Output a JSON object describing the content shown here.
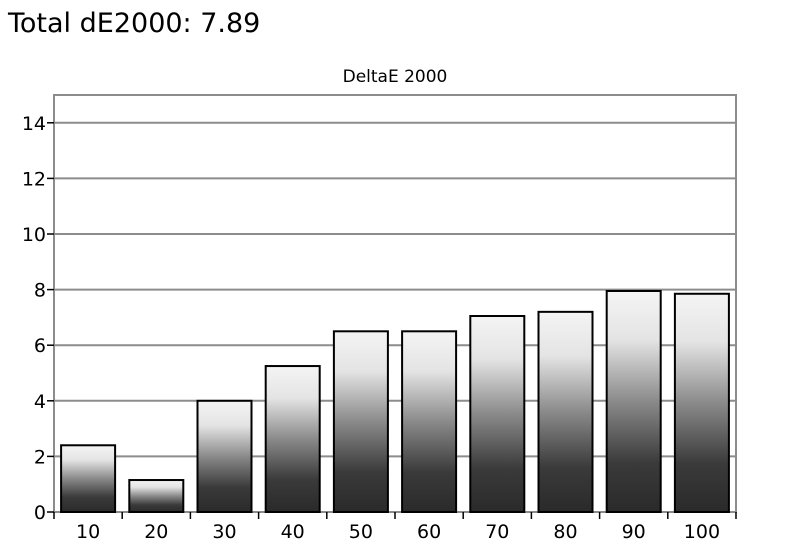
{
  "header": {
    "title": "Total dE2000: 7.89"
  },
  "chart_data": {
    "type": "bar",
    "title": "DeltaE 2000",
    "xlabel": "",
    "ylabel": "",
    "categories": [
      "10",
      "20",
      "30",
      "40",
      "50",
      "60",
      "70",
      "80",
      "90",
      "100"
    ],
    "values": [
      2.4,
      1.15,
      4.0,
      5.25,
      6.5,
      6.5,
      7.05,
      7.2,
      7.95,
      7.85
    ],
    "ylim": [
      0,
      15
    ],
    "yticks": [
      0,
      2,
      4,
      6,
      8,
      10,
      12,
      14
    ],
    "grid": true,
    "legend": "none"
  }
}
